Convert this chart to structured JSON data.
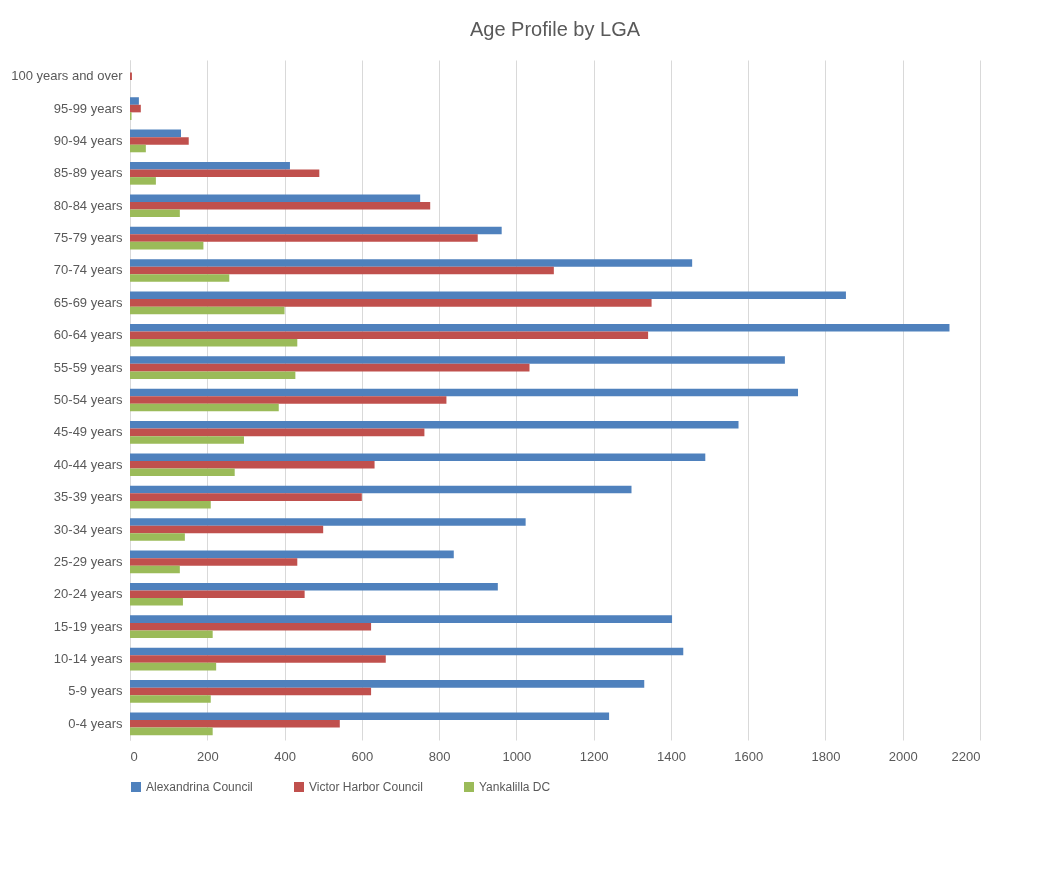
{
  "chart_data": {
    "type": "bar",
    "orientation": "horizontal",
    "title": "Age Profile by LGA",
    "categories": [
      "100 years and over",
      "95-99 years",
      "90-94 years",
      "85-89 years",
      "80-84 years",
      "75-79 years",
      "70-74 years",
      "65-69 years",
      "60-64 years",
      "55-59 years",
      "50-54 years",
      "45-49 years",
      "40-44 years",
      "35-39 years",
      "30-34 years",
      "25-29 years",
      "20-24 years",
      "15-19 years",
      "10-14 years",
      "5-9 years",
      "0-4 years"
    ],
    "series": [
      {
        "name": "Alexandrina Council",
        "color": "#4f81bd",
        "values": [
          0,
          23,
          132,
          414,
          751,
          962,
          1455,
          1853,
          2121,
          1695,
          1729,
          1575,
          1489,
          1298,
          1024,
          838,
          952,
          1403,
          1432,
          1331,
          1240
        ]
      },
      {
        "name": "Victor Harbor Council",
        "color": "#c0504d",
        "values": [
          5,
          28,
          152,
          490,
          777,
          900,
          1097,
          1350,
          1341,
          1034,
          819,
          762,
          633,
          600,
          500,
          433,
          452,
          624,
          662,
          624,
          543
        ]
      },
      {
        "name": "Yankalilla DC",
        "color": "#9bbb59",
        "values": [
          0,
          4,
          41,
          67,
          129,
          190,
          257,
          400,
          433,
          428,
          385,
          295,
          271,
          209,
          142,
          129,
          137,
          214,
          223,
          209,
          214
        ]
      }
    ],
    "xlim": [
      0,
      2200
    ],
    "xticks": [
      0,
      200,
      400,
      600,
      800,
      1000,
      1200,
      1400,
      1600,
      1800,
      2000,
      2200
    ],
    "grid": "x",
    "legend": "bottom"
  }
}
